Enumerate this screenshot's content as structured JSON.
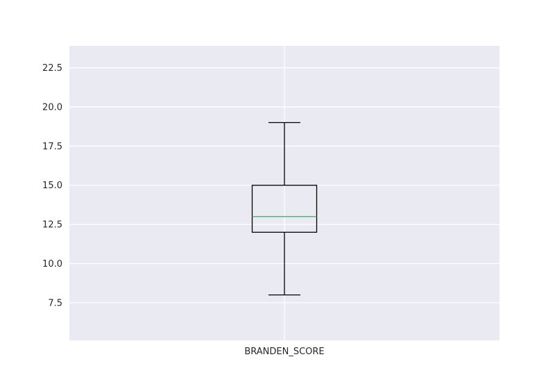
{
  "chart_data": {
    "type": "box",
    "categories": [
      "BRANDEN_SCORE"
    ],
    "boxes": [
      {
        "category": "BRANDEN_SCORE",
        "whisker_low": 8.0,
        "q1": 12.0,
        "median": 13.0,
        "q3": 15.0,
        "whisker_high": 19.0
      }
    ],
    "ylim": [
      5.1,
      23.9
    ],
    "yticks": [
      7.5,
      10.0,
      12.5,
      15.0,
      17.5,
      20.0,
      22.5
    ],
    "ytick_labels": [
      "7.5",
      "10.0",
      "12.5",
      "15.0",
      "17.5",
      "20.0",
      "22.5"
    ],
    "grid": true,
    "colors": {
      "background": "#eaeaf2",
      "grid": "#ffffff",
      "box": "#000000",
      "median": "#55a868"
    }
  }
}
